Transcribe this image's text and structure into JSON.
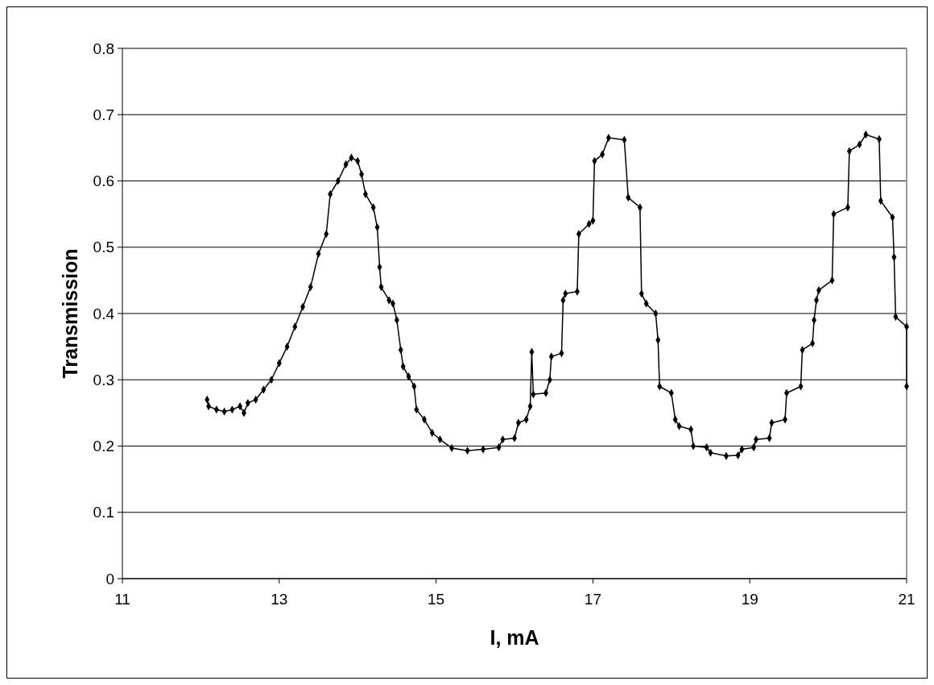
{
  "chart_data": {
    "type": "line",
    "xlabel": "I, mA",
    "ylabel": "Transmission",
    "xlim": [
      11,
      21
    ],
    "xticks": [
      11,
      13,
      15,
      17,
      19,
      21
    ],
    "ylim": [
      0,
      0.8
    ],
    "yticks": [
      0,
      0.1,
      0.2,
      0.3,
      0.4,
      0.5,
      0.6,
      0.7,
      0.8
    ],
    "grid": "y",
    "marker": "diamond",
    "line_style": "solid",
    "series": [
      {
        "color": "#000000",
        "x": [
          12.08,
          12.1,
          12.2,
          12.3,
          12.4,
          12.5,
          12.55,
          12.6,
          12.7,
          12.8,
          12.9,
          13.0,
          13.1,
          13.2,
          13.3,
          13.4,
          13.5,
          13.6,
          13.65,
          13.75,
          13.85,
          13.92,
          14.0,
          14.05,
          14.1,
          14.2,
          14.25,
          14.28,
          14.3,
          14.4,
          14.45,
          14.5,
          14.55,
          14.58,
          14.65,
          14.72,
          14.75,
          14.85,
          14.95,
          15.05,
          15.2,
          15.4,
          15.6,
          15.8,
          15.85,
          16.0,
          16.05,
          16.15,
          16.2,
          16.22,
          16.24,
          16.4,
          16.45,
          16.47,
          16.6,
          16.62,
          16.65,
          16.8,
          16.82,
          16.95,
          17.0,
          17.02,
          17.12,
          17.2,
          17.4,
          17.45,
          17.6,
          17.62,
          17.68,
          17.8,
          17.83,
          17.85,
          18.0,
          18.05,
          18.1,
          18.25,
          18.28,
          18.45,
          18.5,
          18.7,
          18.85,
          18.9,
          19.05,
          19.08,
          19.25,
          19.28,
          19.45,
          19.47,
          19.65,
          19.67,
          19.8,
          19.82,
          19.85,
          19.88,
          20.05,
          20.07,
          20.25,
          20.27,
          20.4,
          20.48,
          20.65,
          20.67,
          20.82,
          20.84,
          20.86,
          21.0,
          21.0
        ],
        "values": [
          0.27,
          0.26,
          0.255,
          0.252,
          0.255,
          0.26,
          0.25,
          0.265,
          0.27,
          0.285,
          0.3,
          0.325,
          0.35,
          0.38,
          0.41,
          0.44,
          0.49,
          0.52,
          0.58,
          0.6,
          0.625,
          0.635,
          0.63,
          0.61,
          0.58,
          0.56,
          0.53,
          0.47,
          0.44,
          0.42,
          0.415,
          0.39,
          0.345,
          0.32,
          0.305,
          0.29,
          0.255,
          0.24,
          0.22,
          0.21,
          0.197,
          0.193,
          0.195,
          0.198,
          0.21,
          0.212,
          0.235,
          0.24,
          0.26,
          0.342,
          0.278,
          0.28,
          0.3,
          0.335,
          0.34,
          0.42,
          0.43,
          0.433,
          0.52,
          0.535,
          0.54,
          0.63,
          0.64,
          0.665,
          0.662,
          0.575,
          0.56,
          0.43,
          0.415,
          0.4,
          0.36,
          0.29,
          0.28,
          0.24,
          0.23,
          0.225,
          0.2,
          0.198,
          0.19,
          0.185,
          0.186,
          0.195,
          0.198,
          0.21,
          0.212,
          0.235,
          0.24,
          0.28,
          0.29,
          0.345,
          0.355,
          0.39,
          0.42,
          0.435,
          0.45,
          0.55,
          0.56,
          0.645,
          0.655,
          0.67,
          0.663,
          0.57,
          0.545,
          0.485,
          0.395,
          0.38,
          0.29
        ]
      }
    ]
  }
}
